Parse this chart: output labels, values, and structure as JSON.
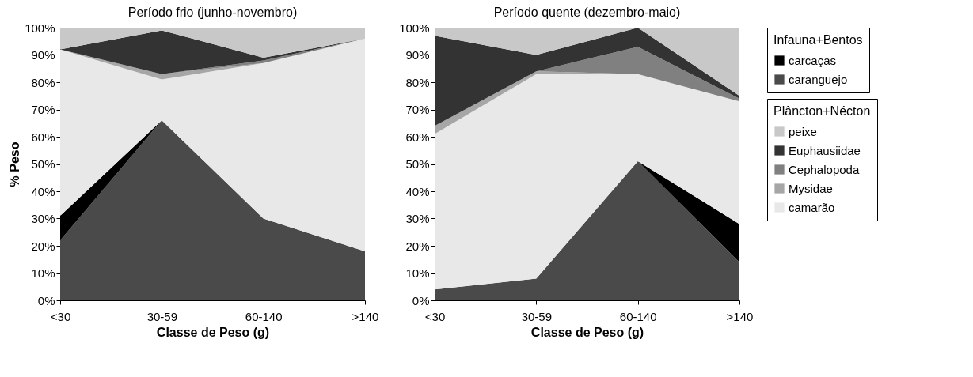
{
  "chart_data": [
    {
      "type": "area",
      "stacked": true,
      "title": "Período frio (junho-novembro)",
      "xlabel": "Classe de Peso (g)",
      "ylabel": "% Peso",
      "legend": "right",
      "grid": false,
      "categories": [
        "<30",
        "30-59",
        "60-140",
        ">140"
      ],
      "ylim": [
        0,
        100
      ],
      "yticks": [
        {
          "value": 0,
          "label": "0%"
        },
        {
          "value": 10,
          "label": "10%"
        },
        {
          "value": 20,
          "label": "20%"
        },
        {
          "value": 30,
          "label": "30%"
        },
        {
          "value": 40,
          "label": "40%"
        },
        {
          "value": 50,
          "label": "50%"
        },
        {
          "value": 60,
          "label": "60%"
        },
        {
          "value": 70,
          "label": "70%"
        },
        {
          "value": 80,
          "label": "80%"
        },
        {
          "value": 90,
          "label": "90%"
        },
        {
          "value": 100,
          "label": "100%"
        }
      ],
      "series": [
        {
          "name": "caranguejo",
          "color": "#4a4a4a",
          "values": [
            22,
            66,
            30,
            18
          ]
        },
        {
          "name": "carcaças",
          "color": "#000000",
          "values": [
            9,
            0,
            0,
            0
          ]
        },
        {
          "name": "camarão",
          "color": "#e8e8e8",
          "values": [
            61,
            15,
            57,
            78
          ]
        },
        {
          "name": "Mysidae",
          "color": "#a6a6a6",
          "values": [
            0,
            2,
            0,
            0
          ]
        },
        {
          "name": "Cephalopoda",
          "color": "#808080",
          "values": [
            0,
            0,
            1,
            0
          ]
        },
        {
          "name": "Euphausiidae",
          "color": "#333333",
          "values": [
            0,
            16,
            1,
            0
          ]
        },
        {
          "name": "peixe",
          "color": "#c8c8c8",
          "values": [
            8,
            1,
            11,
            4
          ]
        }
      ]
    },
    {
      "type": "area",
      "stacked": true,
      "title": "Período quente (dezembro-maio)",
      "xlabel": "Classe de Peso (g)",
      "legend": "right",
      "grid": false,
      "legend_title": "Plâncton+Nécton",
      "annotations": [
        "Infauna+Bentos"
      ],
      "categories": [
        "<30",
        "30-59",
        "60-140",
        ">140"
      ],
      "ylim": [
        0,
        100
      ],
      "yticks": [
        {
          "value": 0,
          "label": "0%"
        },
        {
          "value": 10,
          "label": "10%"
        },
        {
          "value": 20,
          "label": "20%"
        },
        {
          "value": 30,
          "label": "30%"
        },
        {
          "value": 40,
          "label": "40%"
        },
        {
          "value": 50,
          "label": "50%"
        },
        {
          "value": 60,
          "label": "60%"
        },
        {
          "value": 70,
          "label": "70%"
        },
        {
          "value": 80,
          "label": "80%"
        },
        {
          "value": 90,
          "label": "90%"
        },
        {
          "value": 100,
          "label": "100%"
        }
      ],
      "series": [
        {
          "name": "caranguejo",
          "color": "#4a4a4a",
          "values": [
            4,
            8,
            51,
            14
          ]
        },
        {
          "name": "carcaças",
          "color": "#000000",
          "values": [
            0,
            0,
            0,
            14
          ]
        },
        {
          "name": "camarão",
          "color": "#e8e8e8",
          "values": [
            57,
            75,
            32,
            45
          ]
        },
        {
          "name": "Mysidae",
          "color": "#a6a6a6",
          "values": [
            3,
            1,
            0,
            0
          ]
        },
        {
          "name": "Cephalopoda",
          "color": "#808080",
          "values": [
            0,
            0,
            10,
            1
          ]
        },
        {
          "name": "Euphausiidae",
          "color": "#333333",
          "values": [
            33,
            6,
            7,
            1
          ]
        },
        {
          "name": "peixe",
          "color": "#c8c8c8",
          "values": [
            3,
            10,
            0,
            25
          ]
        }
      ]
    }
  ]
}
